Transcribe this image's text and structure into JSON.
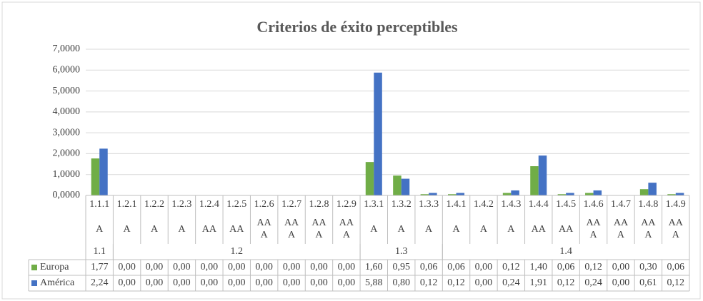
{
  "chart_data": {
    "type": "bar",
    "title": "Criterios de éxito perceptibles",
    "categories": [
      "1.1.1",
      "1.2.1",
      "1.2.2",
      "1.2.3",
      "1.2.4",
      "1.2.5",
      "1.2.6",
      "1.2.7",
      "1.2.8",
      "1.2.9",
      "1.3.1",
      "1.3.2",
      "1.3.3",
      "1.4.1",
      "1.4.2",
      "1.4.3",
      "1.4.4",
      "1.4.5",
      "1.4.6",
      "1.4.7",
      "1.4.8",
      "1.4.9"
    ],
    "levels": [
      "A",
      "A",
      "A",
      "A",
      "AA",
      "AA",
      "AAA",
      "AAA",
      "AAA",
      "AAA",
      "A",
      "A",
      "A",
      "A",
      "A",
      "A",
      "AA",
      "AA",
      "AAA",
      "AAA",
      "AAA",
      "AAA"
    ],
    "groups": [
      {
        "name": "1.1",
        "count": 1
      },
      {
        "name": "1.2",
        "count": 9
      },
      {
        "name": "1.3",
        "count": 3
      },
      {
        "name": "1.4",
        "count": 9
      }
    ],
    "series": [
      {
        "name": "Europa",
        "color": "#70ad47",
        "values": [
          1.77,
          0,
          0,
          0,
          0,
          0,
          0,
          0,
          0,
          0,
          1.6,
          0.95,
          0.06,
          0.06,
          0,
          0.12,
          1.4,
          0.06,
          0.12,
          0,
          0.3,
          0.06
        ],
        "value_labels": [
          "1,77",
          "0,00",
          "0,00",
          "0,00",
          "0,00",
          "0,00",
          "0,00",
          "0,00",
          "0,00",
          "0,00",
          "1,60",
          "0,95",
          "0,06",
          "0,06",
          "0,00",
          "0,12",
          "1,40",
          "0,06",
          "0,12",
          "0,00",
          "0,30",
          "0,06"
        ]
      },
      {
        "name": "América",
        "color": "#4472c4",
        "values": [
          2.24,
          0,
          0,
          0,
          0,
          0,
          0,
          0,
          0,
          0,
          5.88,
          0.8,
          0.12,
          0.12,
          0,
          0.24,
          1.91,
          0.12,
          0.24,
          0,
          0.61,
          0.12
        ],
        "value_labels": [
          "2,24",
          "0,00",
          "0,00",
          "0,00",
          "0,00",
          "0,00",
          "0,00",
          "0,00",
          "0,00",
          "0,00",
          "5,88",
          "0,80",
          "0,12",
          "0,12",
          "0,00",
          "0,24",
          "1,91",
          "0,12",
          "0,24",
          "0,00",
          "0,61",
          "0,12"
        ]
      }
    ],
    "ylim": [
      0,
      7
    ],
    "yticks": [
      {
        "value": 0,
        "label": "0,0000"
      },
      {
        "value": 1,
        "label": "1,0000"
      },
      {
        "value": 2,
        "label": "2,0000"
      },
      {
        "value": 3,
        "label": "3,0000"
      },
      {
        "value": 4,
        "label": "4,0000"
      },
      {
        "value": 5,
        "label": "5,0000"
      },
      {
        "value": 6,
        "label": "6,0000"
      },
      {
        "value": 7,
        "label": "7,0000"
      }
    ],
    "grid": true
  }
}
